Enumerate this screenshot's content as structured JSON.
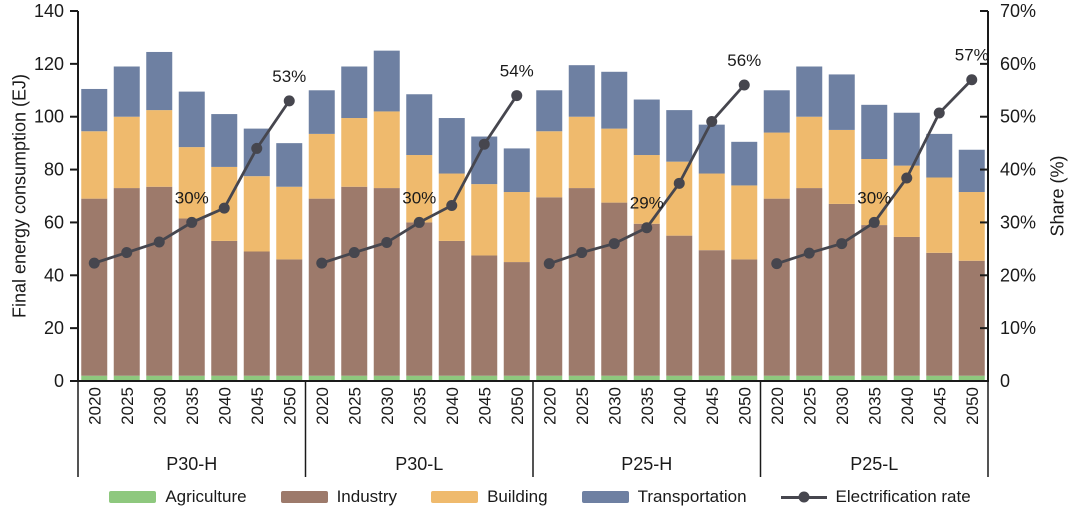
{
  "chart_data": {
    "type": "bar",
    "subtype": "stacked-bars-with-line-overlay",
    "years": [
      "2020",
      "2025",
      "2030",
      "2035",
      "2040",
      "2045",
      "2050"
    ],
    "stack_order": [
      "agriculture",
      "industry",
      "building",
      "transportation"
    ],
    "left_axis": {
      "label": "Final energy consumption (EJ)",
      "min": 0,
      "max": 140,
      "tick_step": 20,
      "tick_labels": [
        "0",
        "20",
        "40",
        "60",
        "80",
        "100",
        "120",
        "140"
      ]
    },
    "right_axis": {
      "label": "Share (%)",
      "min": 0,
      "max": 70,
      "tick_labels": [
        "0",
        "10%",
        "20%",
        "30%",
        "40%",
        "50%",
        "60%",
        "70%"
      ]
    },
    "grid": false,
    "legend_position": "bottom",
    "panels": [
      {
        "label": "P30-H",
        "agriculture": [
          2,
          2,
          2,
          2,
          2,
          2,
          2
        ],
        "industry": [
          67,
          71,
          71.5,
          59.5,
          51,
          47,
          44
        ],
        "building": [
          25.5,
          27,
          29,
          27,
          28,
          28.5,
          27.5
        ],
        "transportation": [
          16,
          19,
          22,
          21,
          20,
          18,
          16.5
        ],
        "electrification_rate_pct": [
          22.3,
          24.3,
          26.3,
          30,
          32.7,
          44,
          53
        ],
        "annotations": [
          {
            "text": "30%",
            "year_index": 3
          },
          {
            "text": "53%",
            "year_index": 6
          }
        ]
      },
      {
        "label": "P30-L",
        "agriculture": [
          2,
          2,
          2,
          2,
          2,
          2,
          2
        ],
        "industry": [
          67,
          71.5,
          71,
          58,
          51,
          45.5,
          43
        ],
        "building": [
          24.5,
          26,
          29,
          25.5,
          25.5,
          27,
          26.5
        ],
        "transportation": [
          16.5,
          19.5,
          23,
          23,
          21,
          18,
          16.5
        ],
        "electrification_rate_pct": [
          22.3,
          24.3,
          26.2,
          30,
          33.2,
          44.8,
          54
        ],
        "annotations": [
          {
            "text": "30%",
            "year_index": 3
          },
          {
            "text": "54%",
            "year_index": 6
          }
        ]
      },
      {
        "label": "P25-H",
        "agriculture": [
          2,
          2,
          2,
          2,
          2,
          2,
          2
        ],
        "industry": [
          67.5,
          71,
          65.5,
          57.5,
          53,
          47.5,
          44
        ],
        "building": [
          25,
          27,
          28,
          26,
          28,
          29,
          28
        ],
        "transportation": [
          15.5,
          19.5,
          21.5,
          21,
          19.5,
          18.5,
          16.5
        ],
        "electrification_rate_pct": [
          22.2,
          24.3,
          26,
          29,
          37.4,
          49.1,
          56
        ],
        "annotations": [
          {
            "text": "29%",
            "year_index": 3
          },
          {
            "text": "56%",
            "year_index": 6
          }
        ]
      },
      {
        "label": "P25-L",
        "agriculture": [
          2,
          2,
          2,
          2,
          2,
          2,
          2
        ],
        "industry": [
          67,
          71,
          65,
          57,
          52.5,
          46.5,
          43.5
        ],
        "building": [
          25,
          27,
          28,
          25,
          27,
          28.5,
          26
        ],
        "transportation": [
          16,
          19,
          21,
          20.5,
          20,
          16.5,
          16
        ],
        "electrification_rate_pct": [
          22.2,
          24.2,
          26,
          30,
          38.4,
          50.7,
          57
        ],
        "annotations": [
          {
            "text": "30%",
            "year_index": 3
          },
          {
            "text": "57%",
            "year_index": 6
          }
        ]
      }
    ],
    "colors": {
      "agriculture": "#8EC87E",
      "industry": "#9D7A6B",
      "building": "#EFBA6D",
      "transportation": "#6E80A2",
      "line": "#46464E",
      "axis": "#1a1a1a"
    }
  },
  "legend": {
    "items": [
      {
        "key": "agriculture",
        "label": "Agriculture",
        "marker": "swatch"
      },
      {
        "key": "industry",
        "label": "Industry",
        "marker": "swatch"
      },
      {
        "key": "building",
        "label": "Building",
        "marker": "swatch"
      },
      {
        "key": "transportation",
        "label": "Transportation",
        "marker": "swatch"
      },
      {
        "key": "line",
        "label": "Electrification rate",
        "marker": "line-dot"
      }
    ]
  }
}
